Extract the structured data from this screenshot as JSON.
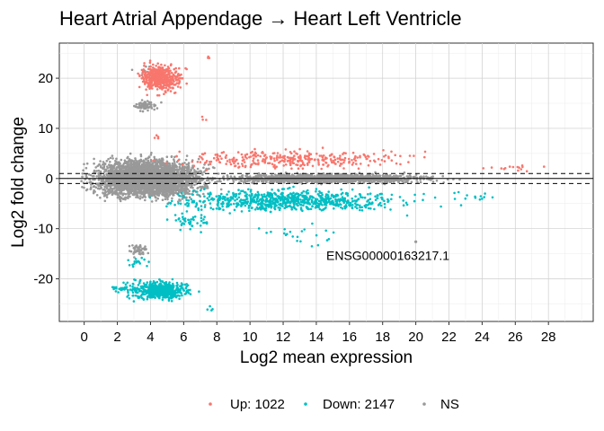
{
  "chart_data": {
    "type": "scatter",
    "title": "Heart Atrial Appendage → Heart Left Ventricle",
    "xlabel": "Log2 mean expression",
    "ylabel": "Log2 fold change",
    "xlim": [
      -1.5,
      30.7
    ],
    "ylim": [
      -28.5,
      27
    ],
    "x_ticks": [
      0,
      2,
      4,
      6,
      8,
      10,
      12,
      14,
      16,
      18,
      20,
      22,
      24,
      26,
      28
    ],
    "x_tick_labels": [
      "0",
      "2",
      "4",
      "6",
      "8",
      "10",
      "12",
      "14",
      "16",
      "18",
      "20",
      "22",
      "24",
      "26",
      "28"
    ],
    "y_ticks": [
      -20,
      -10,
      0,
      10,
      20
    ],
    "y_tick_labels": [
      "-20",
      "-10",
      "0",
      "10",
      "20"
    ],
    "grid": true,
    "reference_lines": {
      "solid": [
        0
      ],
      "dashed": [
        1,
        -1
      ]
    },
    "legend_position": "bottom",
    "series": [
      {
        "name": "Up: 1022",
        "color": "#F8766D",
        "regions": [
          {
            "x": [
              2.8,
              6.6
            ],
            "y": [
              16,
              24
            ],
            "n": 340
          },
          {
            "x": [
              3.6,
              5.4
            ],
            "y": [
              17.5,
              22.5
            ],
            "n": 160
          },
          {
            "x": [
              7.2,
              7.7
            ],
            "y": [
              23.5,
              24.5
            ],
            "n": 3
          },
          {
            "x": [
              4.0,
              4.8
            ],
            "y": [
              7,
              9.5
            ],
            "n": 4
          },
          {
            "x": [
              6.5,
              7.6
            ],
            "y": [
              11,
              13
            ],
            "n": 3
          },
          {
            "x": [
              2.5,
              22.5
            ],
            "y": [
              1.2,
              6.5
            ],
            "n": 330
          },
          {
            "x": [
              22,
              29.5
            ],
            "y": [
              1.0,
              3.0
            ],
            "n": 15
          }
        ]
      },
      {
        "name": "Down: 2147",
        "color": "#00BFC4",
        "regions": [
          {
            "x": [
              1.8,
              7.2
            ],
            "y": [
              -25,
              -19.5
            ],
            "n": 480
          },
          {
            "x": [
              3.8,
              5.8
            ],
            "y": [
              -24,
              -21
            ],
            "n": 180
          },
          {
            "x": [
              1.0,
              3.2
            ],
            "y": [
              -23,
              -21
            ],
            "n": 20
          },
          {
            "x": [
              2.0,
              4.5
            ],
            "y": [
              -18.5,
              -15
            ],
            "n": 16
          },
          {
            "x": [
              7.0,
              8.2
            ],
            "y": [
              -27,
              -25
            ],
            "n": 4
          },
          {
            "x": [
              2.5,
              22.0
            ],
            "y": [
              -7.5,
              -1.2
            ],
            "n": 780
          },
          {
            "x": [
              4.5,
              8.5
            ],
            "y": [
              -11,
              -6
            ],
            "n": 45
          },
          {
            "x": [
              9.0,
              17.0
            ],
            "y": [
              -15,
              -8
            ],
            "n": 22
          },
          {
            "x": [
              21.0,
              26.0
            ],
            "y": [
              -6,
              -1.2
            ],
            "n": 14
          }
        ]
      },
      {
        "name": "NS",
        "color": "#999999",
        "regions": [
          {
            "x": [
              -0.8,
              8.5
            ],
            "y": [
              -5.5,
              5.5
            ],
            "n": 3400
          },
          {
            "x": [
              6.0,
              23.5
            ],
            "y": [
              -1.3,
              1.3
            ],
            "n": 1400
          },
          {
            "x": [
              2.5,
              4.8
            ],
            "y": [
              13,
              16
            ],
            "n": 70
          },
          {
            "x": [
              2.5,
              4.0
            ],
            "y": [
              -16,
              -12.5
            ],
            "n": 45
          },
          {
            "x": [
              2.6,
              4.5
            ],
            "y": [
              20,
              23
            ],
            "n": 8
          }
        ]
      }
    ],
    "annotations": [
      {
        "text": "ENSG00000163217.1",
        "x": 14.6,
        "y": -15.3
      }
    ],
    "highlight_point": {
      "x": 20.0,
      "y": -12.6
    }
  }
}
